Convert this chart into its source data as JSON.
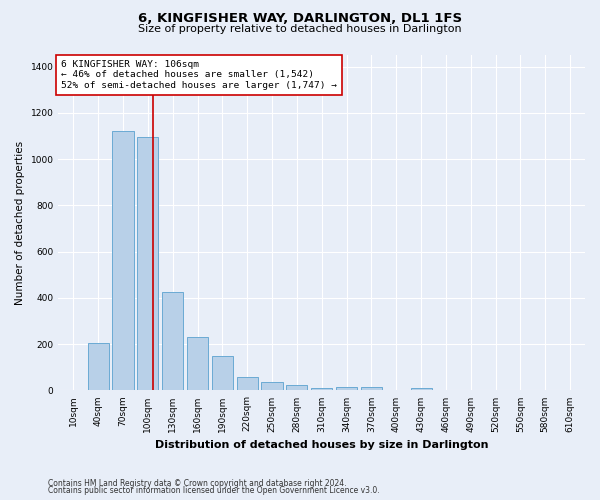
{
  "title": "6, KINGFISHER WAY, DARLINGTON, DL1 1FS",
  "subtitle": "Size of property relative to detached houses in Darlington",
  "xlabel": "Distribution of detached houses by size in Darlington",
  "ylabel": "Number of detached properties",
  "footnote1": "Contains HM Land Registry data © Crown copyright and database right 2024.",
  "footnote2": "Contains public sector information licensed under the Open Government Licence v3.0.",
  "property_label": "6 KINGFISHER WAY: 106sqm",
  "annotation_line1": "← 46% of detached houses are smaller (1,542)",
  "annotation_line2": "52% of semi-detached houses are larger (1,747) →",
  "bar_categories": [
    "10sqm",
    "40sqm",
    "70sqm",
    "100sqm",
    "130sqm",
    "160sqm",
    "190sqm",
    "220sqm",
    "250sqm",
    "280sqm",
    "310sqm",
    "340sqm",
    "370sqm",
    "400sqm",
    "430sqm",
    "460sqm",
    "490sqm",
    "520sqm",
    "550sqm",
    "580sqm",
    "610sqm"
  ],
  "bar_values": [
    0,
    207,
    1120,
    1095,
    425,
    232,
    148,
    57,
    38,
    25,
    10,
    15,
    15,
    0,
    12,
    0,
    0,
    0,
    0,
    0,
    0
  ],
  "bar_color": "#b8d0e8",
  "bar_edge_color": "#6aaad4",
  "vline_color": "#cc0000",
  "vline_x": 3.2,
  "annotation_box_color": "#cc0000",
  "ylim": [
    0,
    1450
  ],
  "yticks": [
    0,
    200,
    400,
    600,
    800,
    1000,
    1200,
    1400
  ],
  "bg_color": "#e8eef8",
  "plot_bg_color": "#e8eef8",
  "grid_color": "#ffffff",
  "title_fontsize": 9.5,
  "subtitle_fontsize": 8,
  "ylabel_fontsize": 7.5,
  "xlabel_fontsize": 8,
  "tick_fontsize": 6.5,
  "annot_fontsize": 6.8,
  "footnote_fontsize": 5.5
}
